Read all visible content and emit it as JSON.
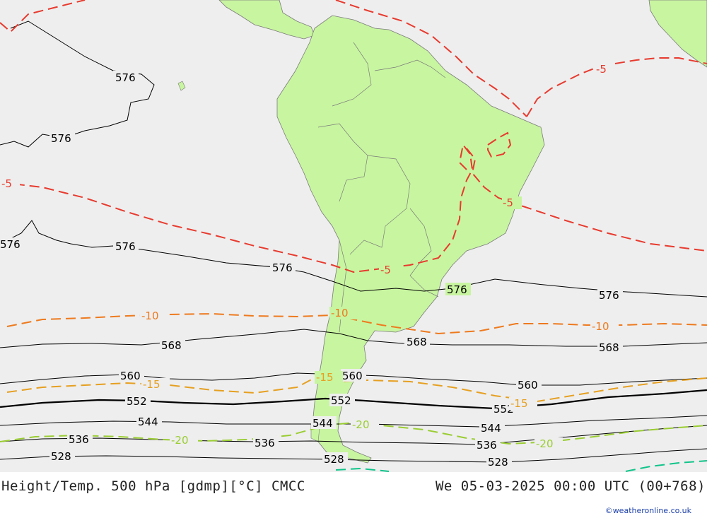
{
  "map": {
    "colors": {
      "ocean": "#eeeeee",
      "land": "#c8f5a0",
      "land_border": "#7a7a7a",
      "height_contour": "#000000",
      "temp_minus5": "#e83a2e",
      "temp_minus10": "#ee7a1e",
      "temp_minus15": "#e6a021",
      "temp_minus20": "#9acd32",
      "temp_minus25": "#10c48a"
    },
    "height_labels": [
      "576",
      "568",
      "560",
      "552",
      "544",
      "536",
      "528"
    ],
    "temp_labels": [
      "-5",
      "-10",
      "-15",
      "-20"
    ]
  },
  "footer": {
    "title": "Height/Temp. 500 hPa [gdmp][°C] CMCC",
    "valid_time": "We 05-03-2025 00:00 UTC (00+768)",
    "credit": "©weatheronline.co.uk"
  }
}
